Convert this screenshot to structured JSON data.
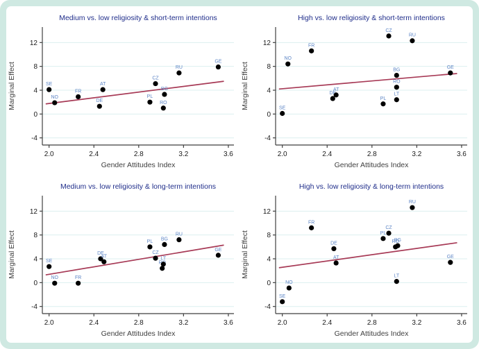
{
  "figure": {
    "frame_color": "#cfe9e2",
    "background_color": "#ffffff",
    "gridline_color": "#dcefef",
    "axis_color": "#3f3f3f",
    "tick_text_color": "#1a1a1a",
    "title_color": "#1f2d8a",
    "point_label_color": "#5e86c6",
    "point_color": "#000000",
    "fit_line_color": "#a73a56",
    "xlabel": "Gender Attitudes Index",
    "ylabel": "Marginal Effect",
    "x_ticks": [
      2.0,
      2.4,
      2.8,
      3.2,
      3.6
    ],
    "x_tick_labels": [
      "2.0",
      "2.4",
      "2.8",
      "3.2",
      "3.6"
    ],
    "y_ticks": [
      -4,
      0,
      4,
      8,
      12
    ],
    "y_tick_labels": [
      "-4",
      "0",
      "4",
      "8",
      "12"
    ],
    "xlim": [
      1.94,
      3.65
    ],
    "ylim": [
      -5.2,
      14.6
    ]
  },
  "chart_data": [
    {
      "type": "scatter",
      "title": "Medium vs. low religiosity & short-term intentions",
      "xlabel": "Gender Attitudes Index",
      "ylabel": "Marginal Effect",
      "xlim": [
        1.94,
        3.65
      ],
      "ylim": [
        -5.2,
        14.6
      ],
      "grid": true,
      "points": [
        {
          "label": "SE",
          "x": 2.0,
          "y": 4.1
        },
        {
          "label": "NO",
          "x": 2.05,
          "y": 1.9
        },
        {
          "label": "FR",
          "x": 2.26,
          "y": 2.9
        },
        {
          "label": "DE",
          "x": 2.45,
          "y": 1.3
        },
        {
          "label": "AT",
          "x": 2.48,
          "y": 4.1
        },
        {
          "label": "PL",
          "x": 2.9,
          "y": 2.0
        },
        {
          "label": "CZ",
          "x": 2.95,
          "y": 5.1
        },
        {
          "label": "RO",
          "x": 3.02,
          "y": 1.0
        },
        {
          "label": "BG",
          "x": 3.03,
          "y": 3.3
        },
        {
          "label": "RU",
          "x": 3.16,
          "y": 6.9
        },
        {
          "label": "GE",
          "x": 3.51,
          "y": 7.9
        }
      ],
      "fit_line": {
        "x1": 1.97,
        "y1": 1.7,
        "x2": 3.56,
        "y2": 5.5
      }
    },
    {
      "type": "scatter",
      "title": "High vs. low religiosity & short-term intentions",
      "xlabel": "Gender Attitudes Index",
      "ylabel": "Marginal Effect",
      "xlim": [
        1.94,
        3.65
      ],
      "ylim": [
        -5.2,
        14.6
      ],
      "grid": true,
      "points": [
        {
          "label": "SE",
          "x": 2.0,
          "y": 0.1
        },
        {
          "label": "NO",
          "x": 2.05,
          "y": 8.4
        },
        {
          "label": "FR",
          "x": 2.26,
          "y": 10.6
        },
        {
          "label": "DE",
          "x": 2.45,
          "y": 2.6
        },
        {
          "label": "AT",
          "x": 2.48,
          "y": 3.2
        },
        {
          "label": "PL",
          "x": 2.9,
          "y": 1.7
        },
        {
          "label": "CZ",
          "x": 2.95,
          "y": 13.1
        },
        {
          "label": "BG",
          "x": 3.02,
          "y": 6.5
        },
        {
          "label": "RO",
          "x": 3.02,
          "y": 4.5
        },
        {
          "label": "LT",
          "x": 3.02,
          "y": 2.4
        },
        {
          "label": "RU",
          "x": 3.16,
          "y": 12.3
        },
        {
          "label": "GE",
          "x": 3.5,
          "y": 6.9
        }
      ],
      "fit_line": {
        "x1": 1.97,
        "y1": 4.2,
        "x2": 3.56,
        "y2": 6.8
      }
    },
    {
      "type": "scatter",
      "title": "Medium vs. low religiosity & long-term intentions",
      "xlabel": "Gender Attitudes Index",
      "ylabel": "Marginal Effect",
      "xlim": [
        1.94,
        3.65
      ],
      "ylim": [
        -5.2,
        14.6
      ],
      "grid": true,
      "points": [
        {
          "label": "SE",
          "x": 2.0,
          "y": 2.7
        },
        {
          "label": "NO",
          "x": 2.05,
          "y": -0.1
        },
        {
          "label": "FR",
          "x": 2.26,
          "y": -0.1
        },
        {
          "label": "DE",
          "x": 2.46,
          "y": 4.0
        },
        {
          "label": "AT",
          "x": 2.49,
          "y": 3.5
        },
        {
          "label": "PL",
          "x": 2.9,
          "y": 6.0
        },
        {
          "label": "CZ",
          "x": 2.95,
          "y": 4.1
        },
        {
          "label": "RO",
          "x": 3.01,
          "y": 2.4
        },
        {
          "label": "LT",
          "x": 3.02,
          "y": 3.1
        },
        {
          "label": "BG",
          "x": 3.03,
          "y": 6.4
        },
        {
          "label": "RU",
          "x": 3.16,
          "y": 7.2
        },
        {
          "label": "GE",
          "x": 3.51,
          "y": 4.6
        }
      ],
      "fit_line": {
        "x1": 1.97,
        "y1": 1.3,
        "x2": 3.56,
        "y2": 6.3
      }
    },
    {
      "type": "scatter",
      "title": "High vs. low religiosity & long-term intentions",
      "xlabel": "Gender Attitudes Index",
      "ylabel": "Marginal Effect",
      "xlim": [
        1.94,
        3.65
      ],
      "ylim": [
        -5.2,
        14.6
      ],
      "grid": true,
      "points": [
        {
          "label": "SE",
          "x": 2.0,
          "y": -3.2
        },
        {
          "label": "NO",
          "x": 2.06,
          "y": -0.9
        },
        {
          "label": "FR",
          "x": 2.26,
          "y": 9.2
        },
        {
          "label": "DE",
          "x": 2.46,
          "y": 5.7
        },
        {
          "label": "AT",
          "x": 2.48,
          "y": 3.3
        },
        {
          "label": "PL",
          "x": 2.9,
          "y": 7.4
        },
        {
          "label": "CZ",
          "x": 2.95,
          "y": 8.3
        },
        {
          "label": "RO",
          "x": 3.01,
          "y": 6.0
        },
        {
          "label": "BG",
          "x": 3.03,
          "y": 6.2
        },
        {
          "label": "LT",
          "x": 3.02,
          "y": 0.2
        },
        {
          "label": "RU",
          "x": 3.16,
          "y": 12.6
        },
        {
          "label": "GE",
          "x": 3.5,
          "y": 3.4
        }
      ],
      "fit_line": {
        "x1": 1.97,
        "y1": 2.5,
        "x2": 3.56,
        "y2": 6.7
      }
    }
  ]
}
